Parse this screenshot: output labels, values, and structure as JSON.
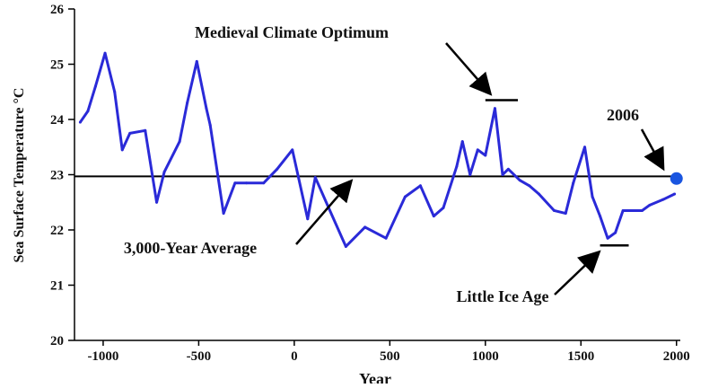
{
  "chart_data": {
    "type": "line",
    "xlabel": "Year",
    "ylabel": "Sea Surface Temperature °C",
    "xlim": [
      -1150,
      2020
    ],
    "ylim": [
      20,
      26
    ],
    "xticks": [
      -1000,
      -500,
      0,
      500,
      1000,
      1500,
      2000
    ],
    "xtick_labels": [
      "-1000",
      "-500",
      "0",
      "500",
      "1000",
      "1500",
      "2000"
    ],
    "yticks": [
      20,
      21,
      22,
      23,
      24,
      25,
      26
    ],
    "ytick_labels": [
      "20",
      "21",
      "22",
      "23",
      "24",
      "25",
      "26"
    ],
    "series": [
      {
        "name": "Sea Surface Temperature",
        "color": "#2a2ad8",
        "x": [
          -1120,
          -1080,
          -1040,
          -990,
          -940,
          -900,
          -860,
          -780,
          -720,
          -680,
          -600,
          -560,
          -510,
          -460,
          -440,
          -370,
          -310,
          -250,
          -160,
          -90,
          -10,
          70,
          110,
          180,
          270,
          370,
          480,
          580,
          660,
          730,
          780,
          850,
          880,
          920,
          960,
          1000,
          1050,
          1090,
          1120,
          1180,
          1230,
          1280,
          1360,
          1420,
          1460,
          1520,
          1560,
          1600,
          1640,
          1680,
          1720,
          1760,
          1820,
          1860,
          1930,
          1990
        ],
        "values": [
          23.95,
          24.15,
          24.6,
          25.2,
          24.5,
          23.45,
          23.75,
          23.8,
          22.5,
          23.05,
          23.6,
          24.3,
          25.05,
          24.2,
          23.9,
          22.3,
          22.85,
          22.85,
          22.85,
          23.1,
          23.45,
          22.2,
          22.95,
          22.4,
          21.7,
          22.05,
          21.85,
          22.6,
          22.8,
          22.25,
          22.4,
          23.15,
          23.6,
          23.0,
          23.45,
          23.35,
          24.2,
          23.0,
          23.1,
          22.9,
          22.8,
          22.65,
          22.35,
          22.3,
          22.85,
          23.5,
          22.6,
          22.25,
          21.85,
          21.95,
          22.35,
          22.35,
          22.35,
          22.45,
          22.55,
          22.65
        ]
      }
    ],
    "average_line": {
      "label": "3,000-Year Average",
      "value": 22.97,
      "color": "#000000"
    },
    "point_2006": {
      "label": "2006",
      "x": 2000,
      "value": 22.93,
      "color": "#1a55e0"
    },
    "annotations": [
      {
        "id": "medieval",
        "text": "Medieval Climate Optimum",
        "marker_x": [
          1000,
          1170
        ],
        "marker_value": 24.35
      },
      {
        "id": "average",
        "text": "3,000-Year Average"
      },
      {
        "id": "little-ice-age",
        "text": "Little Ice Age",
        "marker_x": [
          1600,
          1750
        ],
        "marker_value": 21.72
      },
      {
        "id": "year-2006",
        "text": "2006"
      }
    ]
  }
}
